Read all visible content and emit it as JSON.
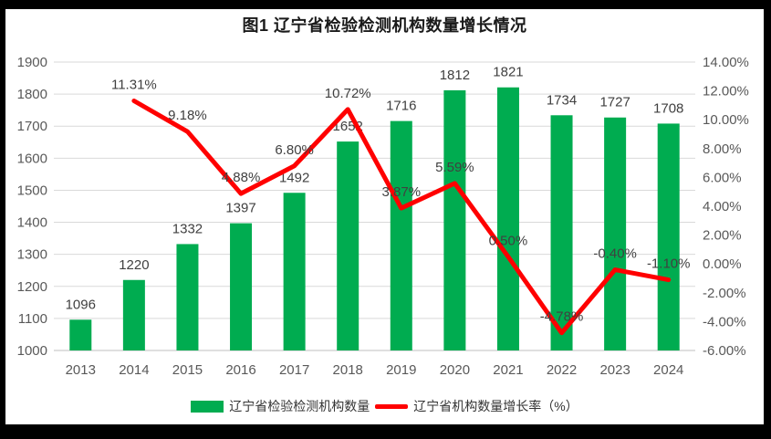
{
  "title": "图1 辽宁省检验检测机构数量增长情况",
  "colors": {
    "bar": "#00AC50",
    "line": "#FF0000",
    "grid": "#D9D9D9",
    "axis_line": "#BFBFBF",
    "tick_text": "#595959",
    "data_label": "#404040",
    "frame": "#000000",
    "background": "#FFFFFF"
  },
  "chart_data": {
    "type": "bar",
    "subtype": "combo-bar-line-dual-axis",
    "title": "图1 辽宁省检验检测机构数量增长情况",
    "categories": [
      "2013",
      "2014",
      "2015",
      "2016",
      "2017",
      "2018",
      "2019",
      "2020",
      "2021",
      "2022",
      "2023",
      "2024"
    ],
    "series": [
      {
        "name": "辽宁省检验检测机构数量",
        "type": "bar",
        "axis": "left",
        "color": "#00AC50",
        "values": [
          1096,
          1220,
          1332,
          1397,
          1492,
          1652,
          1716,
          1812,
          1821,
          1734,
          1727,
          1708
        ],
        "labels": [
          "1096",
          "1220",
          "1332",
          "1397",
          "1492",
          "1652",
          "1716",
          "1812",
          "1821",
          "1734",
          "1727",
          "1708"
        ]
      },
      {
        "name": "辽宁省机构数量增长率（%）",
        "type": "line",
        "axis": "right",
        "color": "#FF0000",
        "values": [
          null,
          11.31,
          9.18,
          4.88,
          6.8,
          10.72,
          3.87,
          5.59,
          0.5,
          -4.78,
          -0.4,
          -1.1
        ],
        "labels": [
          "",
          "11.31%",
          "9.18%",
          "4.88%",
          "6.80%",
          "10.72%",
          "3.87%",
          "5.59%",
          "0.50%",
          "-4.78%",
          "-0.40%",
          "-1.10%"
        ]
      }
    ],
    "left_axis": {
      "min": 1000,
      "max": 1900,
      "step": 100,
      "ticks": [
        "1900",
        "1800",
        "1700",
        "1600",
        "1500",
        "1400",
        "1300",
        "1200",
        "1100",
        "1000"
      ]
    },
    "right_axis": {
      "min": -6,
      "max": 14,
      "step": 2,
      "ticks": [
        "14.00%",
        "12.00%",
        "10.00%",
        "8.00%",
        "6.00%",
        "4.00%",
        "2.00%",
        "0.00%",
        "-2.00%",
        "-4.00%",
        "-6.00%"
      ]
    },
    "grid": true,
    "legend_position": "bottom"
  },
  "legend": {
    "bar_label": "辽宁省检验检测机构数量",
    "line_label": "辽宁省机构数量增长率（%）"
  }
}
